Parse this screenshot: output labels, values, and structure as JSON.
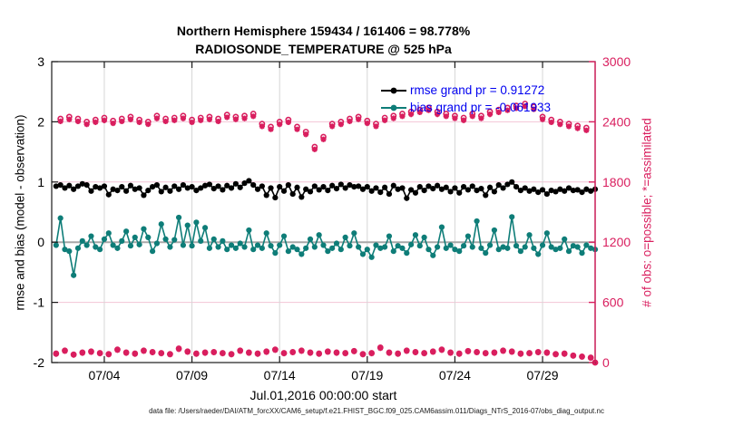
{
  "title": {
    "line1": "Northern Hemisphere 159434 / 161406 = 98.778%",
    "line2": "RADIOSONDE_TEMPERATURE @ 525 hPa"
  },
  "legend": {
    "rmse_label": "rmse grand pr = 0.91272",
    "bias_label": "bias grand pr = -0.061933"
  },
  "axes": {
    "xlabel": "Jul.01,2016 00:00:00 start",
    "ylabel_left": "rmse and bias (model - observation)",
    "ylabel_right": "# of obs: o=possible; *=assimilated",
    "x_tick_days": [
      3,
      8,
      13,
      18,
      23,
      28
    ],
    "x_tick_labels": [
      "07/04",
      "07/09",
      "07/14",
      "07/19",
      "07/24",
      "07/29"
    ],
    "y_left_ticks": [
      3,
      2,
      1,
      0,
      -1,
      -2
    ],
    "y_left_labels": [
      "3",
      "2",
      "1",
      "0",
      "-1",
      "-2"
    ],
    "y_right_ticks": [
      3000,
      2400,
      1800,
      1200,
      600,
      0
    ],
    "y_right_labels": [
      "3000",
      "2400",
      "1800",
      "1200",
      "600",
      "0"
    ],
    "x_range_days": [
      0,
      31
    ],
    "y_left_range": [
      -2,
      3
    ],
    "y_right_range": [
      0,
      3000
    ]
  },
  "colors": {
    "rmse": "#000000",
    "bias": "#0e7d78",
    "counts": "#d91e5e",
    "legend_text": "#0000f0",
    "grid_vertical": "#d6d6d6",
    "grid_horizontal": "#f2c4d6",
    "zero_line": "#a8a8a8",
    "spine": "#1a1a1a",
    "spine_right": "#d91e5e"
  },
  "footer": "data file: /Users/raeder/DAI/ATM_forcXX/CAM6_setup/f.e21.FHIST_BGC.f09_025.CAM6assim.011/Diags_NTrS_2016-07/obs_diag_output.nc",
  "chart_data": {
    "type": "line",
    "title": "Northern Hemisphere 159434 / 161406 = 98.778% | RADIOSONDE_TEMPERATURE @ 525 hPa",
    "xlabel": "Jul.01,2016 00:00:00 start",
    "ylabel_left": "rmse and bias (model - observation)",
    "ylabel_right": "# of obs: o=possible; *=assimilated",
    "x_days": {
      "start": 0.25,
      "step": 0.25,
      "n": 124
    },
    "xlim_days": [
      0,
      31
    ],
    "ylim_left": [
      -2,
      3
    ],
    "ylim_right": [
      0,
      3000
    ],
    "grid": true,
    "legend_position": "top-center-inside",
    "stats": {
      "n_assimilated": 159434,
      "n_possible": 161406,
      "pct_assimilated": 98.778,
      "rmse_grand": 0.91272,
      "bias_grand": -0.061933,
      "level_hPa": 525
    },
    "series": [
      {
        "name": "rmse",
        "axis": "left",
        "marker": "filled-circle",
        "line": true,
        "values": [
          0.93,
          0.95,
          0.9,
          0.94,
          0.88,
          0.93,
          0.97,
          0.95,
          0.85,
          0.92,
          0.9,
          0.93,
          0.79,
          0.88,
          0.86,
          0.92,
          0.85,
          0.94,
          0.88,
          0.9,
          0.78,
          0.86,
          0.92,
          0.95,
          0.84,
          0.91,
          0.85,
          0.93,
          0.88,
          0.95,
          0.9,
          0.92,
          0.86,
          0.9,
          0.94,
          0.96,
          0.89,
          0.93,
          0.87,
          0.94,
          0.9,
          0.97,
          0.91,
          0.98,
          1.02,
          0.95,
          0.88,
          0.93,
          0.78,
          0.9,
          0.74,
          0.92,
          0.85,
          0.95,
          0.8,
          0.91,
          0.75,
          0.88,
          0.84,
          0.93,
          0.87,
          0.92,
          0.86,
          0.94,
          0.89,
          0.96,
          0.9,
          0.95,
          0.92,
          0.93,
          0.88,
          0.92,
          0.85,
          0.9,
          0.83,
          0.91,
          0.8,
          0.94,
          0.88,
          0.9,
          0.73,
          0.87,
          0.82,
          0.92,
          0.86,
          0.93,
          0.89,
          0.94,
          0.88,
          0.91,
          0.84,
          0.9,
          0.82,
          0.92,
          0.87,
          0.93,
          0.86,
          0.89,
          0.78,
          0.91,
          0.84,
          0.95,
          0.9,
          0.96,
          1.0,
          0.92,
          0.86,
          0.9,
          0.85,
          0.88,
          0.83,
          0.87,
          0.8,
          0.86,
          0.84,
          0.88,
          0.85,
          0.9,
          0.86,
          0.87,
          0.83,
          0.88,
          0.85,
          0.88
        ]
      },
      {
        "name": "bias",
        "axis": "left",
        "marker": "filled-circle",
        "line": true,
        "values": [
          -0.05,
          0.4,
          -0.12,
          -0.15,
          -0.55,
          -0.1,
          0.02,
          -0.05,
          0.1,
          -0.08,
          -0.12,
          0.05,
          0.15,
          -0.05,
          -0.1,
          0.02,
          0.18,
          -0.06,
          0.08,
          -0.04,
          0.22,
          0.08,
          -0.15,
          -0.02,
          0.3,
          0.05,
          -0.08,
          0.04,
          0.41,
          -0.05,
          0.28,
          -0.06,
          0.33,
          0.02,
          0.24,
          -0.1,
          0.05,
          -0.08,
          0.02,
          -0.12,
          -0.05,
          -0.1,
          -0.02,
          -0.08,
          0.2,
          -0.12,
          -0.05,
          -0.1,
          0.15,
          -0.06,
          -0.18,
          -0.05,
          0.1,
          -0.15,
          -0.08,
          -0.12,
          -0.2,
          -0.1,
          0.05,
          -0.08,
          0.12,
          -0.05,
          -0.15,
          -0.1,
          -0.02,
          -0.12,
          0.08,
          -0.06,
          0.15,
          -0.08,
          -0.2,
          -0.12,
          -0.25,
          -0.05,
          -0.1,
          -0.08,
          0.1,
          -0.15,
          -0.06,
          -0.1,
          -0.18,
          -0.04,
          0.12,
          -0.06,
          0.08,
          -0.12,
          -0.22,
          -0.08,
          0.25,
          -0.1,
          -0.05,
          -0.12,
          -0.15,
          -0.06,
          0.1,
          -0.08,
          0.35,
          -0.1,
          -0.18,
          -0.05,
          0.2,
          -0.12,
          -0.08,
          -0.1,
          0.42,
          -0.06,
          -0.15,
          -0.08,
          0.12,
          -0.1,
          -0.2,
          -0.05,
          0.15,
          -0.08,
          -0.12,
          -0.1,
          0.05,
          -0.15,
          -0.06,
          -0.08,
          -0.18,
          -0.05,
          -0.1,
          -0.12
        ]
      },
      {
        "name": "obs_possible",
        "axis": "right",
        "marker": "open-circle",
        "line": false,
        "values": [
          90,
          2430,
          120,
          2450,
          80,
          2430,
          100,
          2400,
          110,
          2420,
          95,
          2440,
          85,
          2410,
          130,
          2430,
          100,
          2450,
          90,
          2420,
          120,
          2400,
          105,
          2460,
          95,
          2430,
          85,
          2440,
          140,
          2460,
          110,
          2420,
          90,
          2440,
          100,
          2450,
          105,
          2430,
          95,
          2470,
          85,
          2450,
          120,
          2460,
          100,
          2480,
          90,
          2380,
          110,
          2350,
          130,
          2400,
          95,
          2420,
          105,
          2350,
          120,
          2300,
          100,
          2150,
          90,
          2250,
          110,
          2380,
          100,
          2400,
          95,
          2430,
          115,
          2450,
          85,
          2410,
          95,
          2380,
          150,
          2440,
          100,
          2460,
          90,
          2480,
          120,
          2500,
          105,
          2520,
          95,
          2540,
          110,
          2500,
          130,
          2480,
          100,
          2460,
          90,
          2440,
          115,
          2480,
          105,
          2460,
          95,
          2500,
          100,
          2520,
          120,
          2540,
          110,
          2560,
          90,
          2580,
          95,
          2550,
          105,
          2450,
          100,
          2420,
          85,
          2400,
          90,
          2380,
          70,
          2360,
          60,
          2340,
          50,
          0
        ]
      },
      {
        "name": "obs_assimilated",
        "axis": "right",
        "marker": "asterisk",
        "line": false,
        "values": [
          85,
          2405,
          114,
          2424,
          76,
          2404,
          95,
          2375,
          104,
          2396,
          90,
          2414,
          80,
          2385,
          124,
          2404,
          95,
          2424,
          85,
          2395,
          114,
          2376,
          100,
          2434,
          90,
          2404,
          80,
          2415,
          133,
          2434,
          105,
          2395,
          85,
          2415,
          95,
          2424,
          100,
          2404,
          90,
          2445,
          80,
          2425,
          114,
          2434,
          95,
          2455,
          85,
          2355,
          104,
          2325,
          124,
          2375,
          90,
          2395,
          100,
          2325,
          114,
          2275,
          95,
          2125,
          85,
          2225,
          105,
          2355,
          95,
          2375,
          90,
          2405,
          110,
          2425,
          80,
          2385,
          90,
          2355,
          143,
          2415,
          95,
          2435,
          85,
          2455,
          114,
          2475,
          100,
          2495,
          90,
          2515,
          105,
          2475,
          124,
          2455,
          95,
          2435,
          85,
          2415,
          110,
          2455,
          100,
          2435,
          90,
          2475,
          95,
          2495,
          114,
          2515,
          105,
          2535,
          85,
          2555,
          90,
          2525,
          100,
          2425,
          95,
          2395,
          80,
          2375,
          85,
          2355,
          66,
          2335,
          56,
          2315,
          45,
          0
        ]
      }
    ]
  }
}
